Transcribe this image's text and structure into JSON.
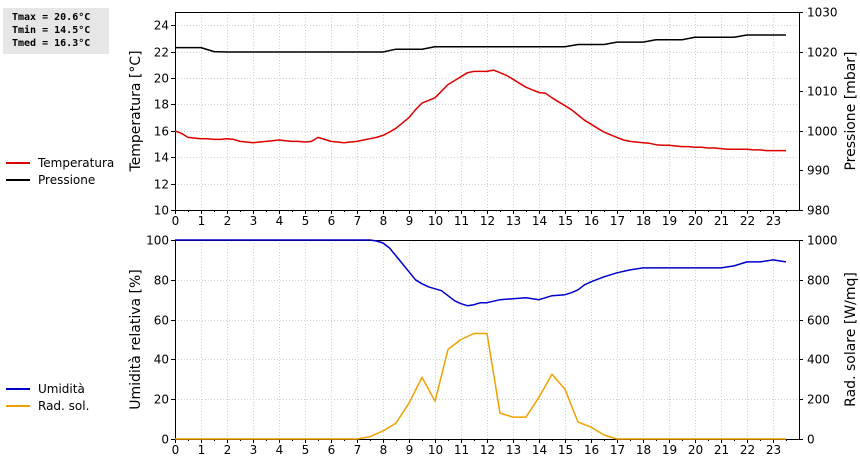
{
  "stats": {
    "tmax": "Tmax = 20.6°C",
    "tmin": "Tmin = 14.5°C",
    "tmed": "Tmed = 16.3°C"
  },
  "chart_data": [
    {
      "type": "line",
      "title": "",
      "xlabel": "",
      "ylabel": "Temperatura [°C]",
      "ylabel_right": "Pressione [mbar]",
      "xlim": [
        0,
        24
      ],
      "ylim": [
        10,
        25
      ],
      "ylim_right": [
        980,
        1030
      ],
      "xticks": [
        0,
        1,
        2,
        3,
        4,
        5,
        6,
        7,
        8,
        9,
        10,
        11,
        12,
        13,
        14,
        15,
        16,
        17,
        18,
        19,
        20,
        21,
        22,
        23
      ],
      "yticks": [
        10,
        12,
        14,
        16,
        18,
        20,
        22,
        24
      ],
      "yticks_right": [
        980,
        990,
        1000,
        1010,
        1020,
        1030
      ],
      "grid": true,
      "legend": "left",
      "series": [
        {
          "name": "Temperatura",
          "color": "#dd0000",
          "axis": "left",
          "x": [
            0,
            0.25,
            0.5,
            0.75,
            1,
            1.25,
            1.5,
            1.75,
            2,
            2.25,
            2.5,
            2.75,
            3,
            3.25,
            3.5,
            3.75,
            4,
            4.25,
            4.5,
            4.75,
            5,
            5.25,
            5.5,
            5.75,
            6,
            6.25,
            6.5,
            6.75,
            7,
            7.25,
            7.5,
            7.75,
            8,
            8.25,
            8.5,
            8.75,
            9,
            9.25,
            9.5,
            9.75,
            10,
            10.25,
            10.5,
            10.75,
            11,
            11.25,
            11.5,
            11.75,
            12,
            12.25,
            12.5,
            12.75,
            13,
            13.25,
            13.5,
            13.75,
            14,
            14.25,
            14.5,
            14.75,
            15,
            15.25,
            15.5,
            15.75,
            16,
            16.25,
            16.5,
            16.75,
            17,
            17.25,
            17.5,
            17.75,
            18,
            18.25,
            18.5,
            18.75,
            19,
            19.25,
            19.5,
            19.75,
            20,
            20.25,
            20.5,
            20.75,
            21,
            21.25,
            21.5,
            21.75,
            22,
            22.25,
            22.5,
            22.75,
            23,
            23.25,
            23.5
          ],
          "y": [
            16.0,
            15.8,
            15.5,
            15.45,
            15.4,
            15.4,
            15.35,
            15.35,
            15.4,
            15.35,
            15.2,
            15.15,
            15.1,
            15.15,
            15.2,
            15.25,
            15.3,
            15.25,
            15.2,
            15.2,
            15.15,
            15.2,
            15.5,
            15.35,
            15.2,
            15.15,
            15.1,
            15.15,
            15.2,
            15.3,
            15.4,
            15.5,
            15.65,
            15.9,
            16.2,
            16.6,
            17.0,
            17.6,
            18.1,
            18.3,
            18.5,
            19.0,
            19.5,
            19.8,
            20.1,
            20.4,
            20.5,
            20.5,
            20.5,
            20.6,
            20.4,
            20.2,
            19.9,
            19.6,
            19.3,
            19.1,
            18.9,
            18.85,
            18.5,
            18.2,
            17.9,
            17.6,
            17.2,
            16.8,
            16.5,
            16.2,
            15.9,
            15.7,
            15.5,
            15.3,
            15.2,
            15.15,
            15.1,
            15.05,
            14.95,
            14.9,
            14.9,
            14.85,
            14.8,
            14.8,
            14.75,
            14.75,
            14.7,
            14.7,
            14.65,
            14.6,
            14.6,
            14.6,
            14.6,
            14.55,
            14.55,
            14.5,
            14.5,
            14.5,
            14.5
          ]
        },
        {
          "name": "Pressione",
          "color": "#000000",
          "axis": "right",
          "x": [
            0,
            1,
            1.5,
            2,
            7.5,
            8,
            8.5,
            9,
            9.5,
            10,
            15,
            15.5,
            16,
            16.5,
            17,
            17.5,
            18,
            18.5,
            19,
            19.5,
            20,
            20.5,
            21,
            21.5,
            22,
            23.5
          ],
          "y": [
            1021,
            1021,
            1020,
            1019.9,
            1019.9,
            1019.9,
            1020.6,
            1020.6,
            1020.6,
            1021.2,
            1021.2,
            1021.8,
            1021.8,
            1021.8,
            1022.4,
            1022.4,
            1022.4,
            1023,
            1023,
            1023,
            1023.6,
            1023.6,
            1023.6,
            1023.6,
            1024.2,
            1024.2
          ]
        }
      ]
    },
    {
      "type": "line",
      "title": "",
      "xlabel": "",
      "ylabel": "Umidità relativa [%]",
      "ylabel_right": "Rad. solare [W/mq]",
      "xlim": [
        0,
        24
      ],
      "ylim": [
        0,
        100
      ],
      "ylim_right": [
        0,
        1000
      ],
      "xticks": [
        0,
        1,
        2,
        3,
        4,
        5,
        6,
        7,
        8,
        9,
        10,
        11,
        12,
        13,
        14,
        15,
        16,
        17,
        18,
        19,
        20,
        21,
        22,
        23
      ],
      "yticks": [
        0,
        20,
        40,
        60,
        80,
        100
      ],
      "yticks_right": [
        0,
        200,
        400,
        600,
        800,
        1000
      ],
      "grid": true,
      "legend": "left",
      "series": [
        {
          "name": "Umidità",
          "color": "#0000cc",
          "axis": "left",
          "x": [
            0,
            7.5,
            7.75,
            8,
            8.25,
            8.5,
            8.75,
            9,
            9.25,
            9.5,
            9.75,
            10,
            10.25,
            10.5,
            10.75,
            11,
            11.25,
            11.5,
            11.75,
            12,
            12.5,
            13,
            13.5,
            14,
            14.5,
            15,
            15.25,
            15.5,
            15.75,
            16,
            16.5,
            17,
            17.5,
            18,
            18.5,
            19,
            19.5,
            20,
            20.5,
            21,
            21.5,
            22,
            22.5,
            23,
            23.5
          ],
          "y": [
            100,
            100,
            99.5,
            98.5,
            96,
            92,
            88,
            84,
            80,
            78,
            76.5,
            75.5,
            74.5,
            72,
            69.5,
            68,
            67,
            67.5,
            68.5,
            68.5,
            70,
            70.5,
            71,
            70,
            72,
            72.5,
            73.5,
            75,
            77.5,
            79,
            81.5,
            83.5,
            85,
            86,
            86,
            86,
            86,
            86,
            86,
            86,
            87,
            89,
            89,
            90,
            89
          ]
        },
        {
          "name": "Rad. sol.",
          "color": "#f0a000",
          "axis": "right",
          "x": [
            0,
            7,
            7.5,
            8,
            8.5,
            9,
            9.5,
            10,
            10.5,
            11,
            11.5,
            12,
            12.5,
            13,
            13.5,
            14,
            14.5,
            15,
            15.5,
            16,
            16.5,
            17,
            17.5,
            23.5
          ],
          "y": [
            0,
            0,
            12,
            40,
            80,
            180,
            310,
            190,
            450,
            500,
            530,
            530,
            130,
            110,
            110,
            210,
            325,
            250,
            85,
            60,
            20,
            0,
            0,
            0
          ]
        }
      ]
    }
  ]
}
